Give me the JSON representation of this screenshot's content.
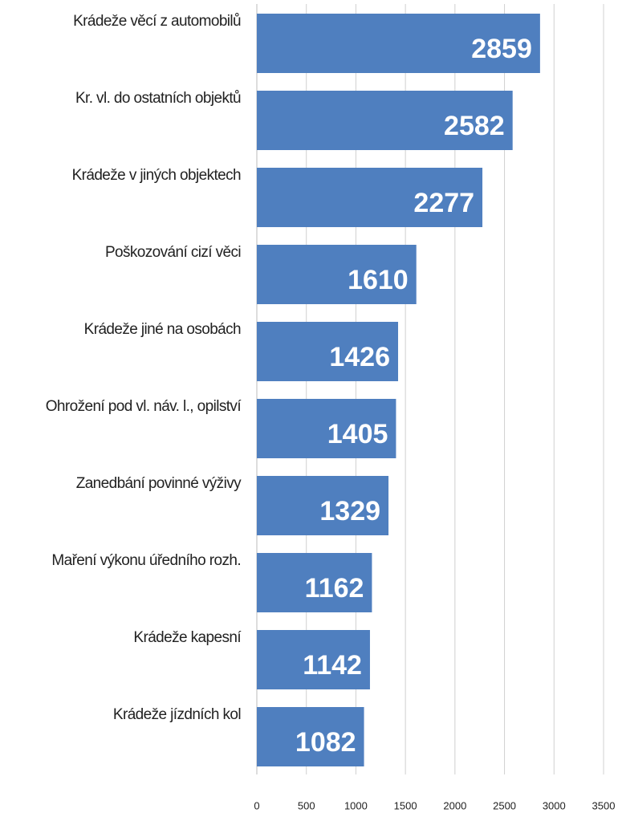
{
  "chart_data": {
    "type": "bar",
    "orientation": "horizontal",
    "categories": [
      "Krádeže věcí z automobilů",
      "Kr. vl. do ostatních objektů",
      "Krádeže v jiných objektech",
      "Poškozování cizí věci",
      "Krádeže jiné na osobách",
      "Ohrožení pod vl. náv. l., opilství",
      "Zanedbání povinné výživy",
      "Maření výkonu úředního rozh.",
      "Krádeže kapesní",
      "Krádeže jízdních kol"
    ],
    "values": [
      2859,
      2582,
      2277,
      1610,
      1426,
      1405,
      1329,
      1162,
      1142,
      1082
    ],
    "color": "#4f7fbf",
    "xlim": [
      0,
      3500
    ],
    "xticks": [
      0,
      500,
      1000,
      1500,
      2000,
      2500,
      3000,
      3500
    ],
    "grid": true
  }
}
